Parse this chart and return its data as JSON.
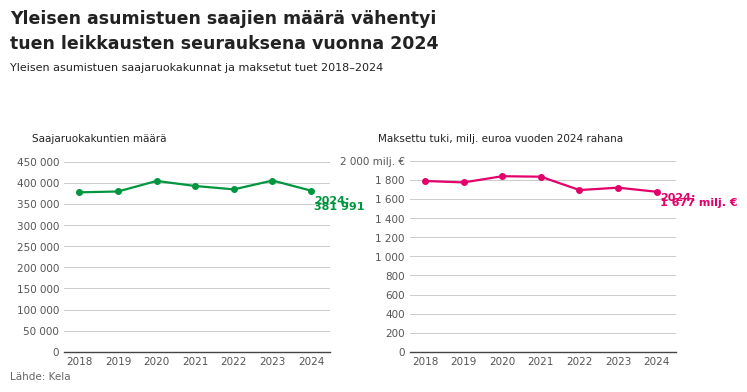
{
  "title_line1": "Yleisen asumistuen saajien määrä vähentyi",
  "title_line2": "tuen leikkausten seurauksena vuonna 2024",
  "subtitle": "Yleisen asumistuen saajaruokakunnat ja maksetut tuet 2018–2024",
  "source": "Lähde: Kela",
  "years": [
    2018,
    2019,
    2020,
    2021,
    2022,
    2023,
    2024
  ],
  "left_axis_label": "Saajaruokakuntien määrä",
  "left_yticks": [
    0,
    50000,
    100000,
    150000,
    200000,
    250000,
    300000,
    350000,
    400000,
    450000
  ],
  "left_ylim": [
    0,
    475000
  ],
  "left_values": [
    378000,
    380000,
    405000,
    393000,
    385000,
    406000,
    381991
  ],
  "left_annotation_line1": "2024:",
  "left_annotation_line2": "381 991",
  "left_color": "#00963f",
  "right_axis_label": "Maksettu tuki, milj. euroa vuoden 2024 rahana",
  "right_yticks": [
    0,
    200,
    400,
    600,
    800,
    1000,
    1200,
    1400,
    1600,
    1800,
    2000
  ],
  "right_ylim": [
    0,
    2100
  ],
  "right_values": [
    1790,
    1775,
    1840,
    1835,
    1695,
    1720,
    1677
  ],
  "right_annotation_line1": "2024:",
  "right_annotation_line2": "1 677 milj. €",
  "right_color": "#e4006b",
  "background_color": "#ffffff",
  "grid_color": "#cccccc",
  "text_color": "#222222",
  "axis_text_color": "#555555"
}
